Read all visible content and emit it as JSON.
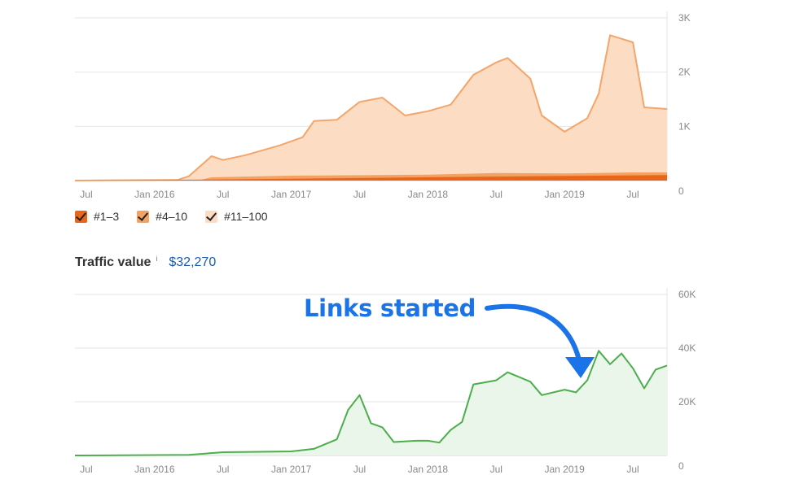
{
  "chart_data": [
    {
      "type": "area",
      "title": "",
      "xlabel": "",
      "ylabel": "",
      "x_tick_labels": [
        "Jul",
        "Jan 2016",
        "Jul",
        "Jan 2017",
        "Jul",
        "Jan 2018",
        "Jul",
        "Jan 2019",
        "Jul"
      ],
      "y_tick_labels": [
        "3K",
        "2K",
        "1K",
        "0"
      ],
      "ylim": [
        0,
        3000
      ],
      "x_range": [
        "2015-06",
        "2019-10"
      ],
      "grid": true,
      "stacked": true,
      "series": [
        {
          "name": "#11–100",
          "color": "#fcdcc2",
          "line_color": "#f3a56a",
          "points": [
            [
              "2015-06",
              0
            ],
            [
              "2016-03",
              10
            ],
            [
              "2016-04",
              80
            ],
            [
              "2016-06",
              450
            ],
            [
              "2016-07",
              380
            ],
            [
              "2016-09",
              470
            ],
            [
              "2016-12",
              650
            ],
            [
              "2017-02",
              800
            ],
            [
              "2017-03",
              1100
            ],
            [
              "2017-05",
              1120
            ],
            [
              "2017-07",
              1450
            ],
            [
              "2017-09",
              1530
            ],
            [
              "2017-11",
              1200
            ],
            [
              "2018-01",
              1280
            ],
            [
              "2018-03",
              1400
            ],
            [
              "2018-05",
              1950
            ],
            [
              "2018-07",
              2180
            ],
            [
              "2018-08",
              2260
            ],
            [
              "2018-10",
              1880
            ],
            [
              "2018-11",
              1200
            ],
            [
              "2019-01",
              900
            ],
            [
              "2019-03",
              1150
            ],
            [
              "2019-04",
              1600
            ],
            [
              "2019-05",
              2680
            ],
            [
              "2019-07",
              2550
            ],
            [
              "2019-08",
              1350
            ],
            [
              "2019-10",
              1320
            ]
          ]
        },
        {
          "name": "#4–10",
          "color": "#f4a261",
          "points": [
            [
              "2015-06",
              0
            ],
            [
              "2016-05",
              10
            ],
            [
              "2016-06",
              60
            ],
            [
              "2017-01",
              90
            ],
            [
              "2018-01",
              110
            ],
            [
              "2018-07",
              140
            ],
            [
              "2019-01",
              130
            ],
            [
              "2019-07",
              150
            ],
            [
              "2019-10",
              150
            ]
          ]
        },
        {
          "name": "#1–3",
          "color": "#e8651a",
          "points": [
            [
              "2015-06",
              0
            ],
            [
              "2016-06",
              20
            ],
            [
              "2017-06",
              45
            ],
            [
              "2018-06",
              70
            ],
            [
              "2019-06",
              95
            ],
            [
              "2019-10",
              100
            ]
          ]
        }
      ]
    },
    {
      "type": "area",
      "title": "Traffic value",
      "value_display": "$32,270",
      "xlabel": "",
      "ylabel": "",
      "x_tick_labels": [
        "Jul",
        "Jan 2016",
        "Jul",
        "Jan 2017",
        "Jul",
        "Jan 2018",
        "Jul",
        "Jan 2019",
        "Jul"
      ],
      "y_tick_labels": [
        "60K",
        "40K",
        "20K",
        "0"
      ],
      "ylim": [
        0,
        60000
      ],
      "x_range": [
        "2015-06",
        "2019-10"
      ],
      "grid": true,
      "annotation": {
        "text": "Links started",
        "points_to": "2019-01",
        "color": "#1a73e8"
      },
      "series": [
        {
          "name": "Traffic value",
          "color": "#eaf6e9",
          "line_color": "#4cae4c",
          "points": [
            [
              "2015-06",
              0
            ],
            [
              "2016-04",
              200
            ],
            [
              "2016-07",
              1200
            ],
            [
              "2017-01",
              1500
            ],
            [
              "2017-03",
              2500
            ],
            [
              "2017-05",
              6000
            ],
            [
              "2017-06",
              17000
            ],
            [
              "2017-07",
              22500
            ],
            [
              "2017-08",
              12000
            ],
            [
              "2017-09",
              10500
            ],
            [
              "2017-10",
              5000
            ],
            [
              "2017-12",
              5500
            ],
            [
              "2018-01",
              5500
            ],
            [
              "2018-02",
              4800
            ],
            [
              "2018-03",
              9500
            ],
            [
              "2018-04",
              12500
            ],
            [
              "2018-05",
              26500
            ],
            [
              "2018-07",
              28000
            ],
            [
              "2018-08",
              31000
            ],
            [
              "2018-10",
              27500
            ],
            [
              "2018-11",
              22500
            ],
            [
              "2019-01",
              24500
            ],
            [
              "2019-02",
              23500
            ],
            [
              "2019-03",
              28000
            ],
            [
              "2019-04",
              39000
            ],
            [
              "2019-05",
              34000
            ],
            [
              "2019-06",
              38000
            ],
            [
              "2019-07",
              32500
            ],
            [
              "2019-08",
              25000
            ],
            [
              "2019-09",
              32000
            ],
            [
              "2019-10",
              33500
            ]
          ]
        }
      ]
    }
  ],
  "legend": [
    {
      "label": "#1–3",
      "color": "#e8651a"
    },
    {
      "label": "#4–10",
      "color": "#f4a261"
    },
    {
      "label": "#11–100",
      "color": "#fcdcc2"
    }
  ],
  "traffic_value": {
    "label": "Traffic value",
    "info": "i",
    "value": "$32,270"
  },
  "annotation_text": "Links started"
}
